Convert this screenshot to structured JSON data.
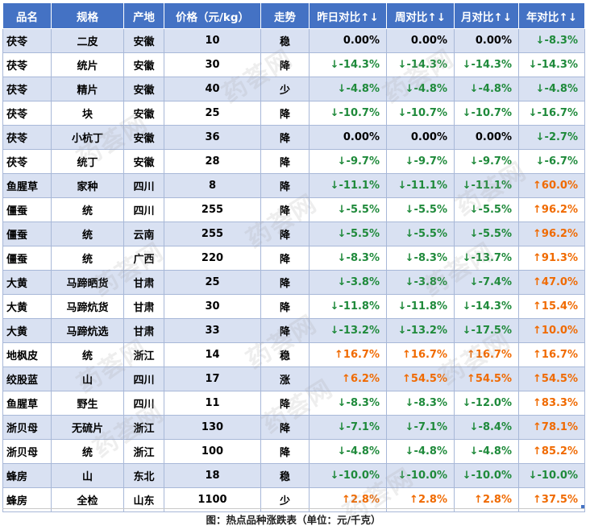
{
  "headers": [
    "品名",
    "规格",
    "产地",
    "价格（元/kg）",
    "走势",
    "昨日对比↑↓",
    "周对比↑↓",
    "月对比↑↓",
    "年对比↑↓"
  ],
  "rows": [
    {
      "name": "茯苓",
      "spec": "二皮",
      "origin": "安徽",
      "price": "10",
      "trend": "稳",
      "day": "0.00%",
      "week": "0.00%",
      "month": "0.00%",
      "year": "↓-8.3%"
    },
    {
      "name": "茯苓",
      "spec": "统片",
      "origin": "安徽",
      "price": "30",
      "trend": "降",
      "day": "↓-14.3%",
      "week": "↓-14.3%",
      "month": "↓-14.3%",
      "year": "↓-14.3%"
    },
    {
      "name": "茯苓",
      "spec": "精片",
      "origin": "安徽",
      "price": "40",
      "trend": "少",
      "day": "↓-4.8%",
      "week": "↓-4.8%",
      "month": "↓-4.8%",
      "year": "↓-4.8%"
    },
    {
      "name": "茯苓",
      "spec": "块",
      "origin": "安徽",
      "price": "25",
      "trend": "降",
      "day": "↓-10.7%",
      "week": "↓-10.7%",
      "month": "↓-10.7%",
      "year": "↓-16.7%"
    },
    {
      "name": "茯苓",
      "spec": "小杭丁",
      "origin": "安徽",
      "price": "36",
      "trend": "降",
      "day": "0.00%",
      "week": "0.00%",
      "month": "0.00%",
      "year": "↓-2.7%"
    },
    {
      "name": "茯苓",
      "spec": "统丁",
      "origin": "安徽",
      "price": "28",
      "trend": "降",
      "day": "↓-9.7%",
      "week": "↓-9.7%",
      "month": "↓-9.7%",
      "year": "↓-6.7%"
    },
    {
      "name": "鱼腥草",
      "spec": "家种",
      "origin": "四川",
      "price": "8",
      "trend": "降",
      "day": "↓-11.1%",
      "week": "↓-11.1%",
      "month": "↓-11.1%",
      "year": "↑60.0%"
    },
    {
      "name": "僵蚕",
      "spec": "统",
      "origin": "四川",
      "price": "255",
      "trend": "降",
      "day": "↓-5.5%",
      "week": "↓-5.5%",
      "month": "↓-5.5%",
      "year": "↑96.2%"
    },
    {
      "name": "僵蚕",
      "spec": "统",
      "origin": "云南",
      "price": "255",
      "trend": "降",
      "day": "↓-5.5%",
      "week": "↓-5.5%",
      "month": "↓-5.5%",
      "year": "↑96.2%"
    },
    {
      "name": "僵蚕",
      "spec": "统",
      "origin": "广西",
      "price": "220",
      "trend": "降",
      "day": "↓-8.3%",
      "week": "↓-8.3%",
      "month": "↓-13.7%",
      "year": "↑91.3%"
    },
    {
      "name": "大黄",
      "spec": "马蹄晒货",
      "origin": "甘肃",
      "price": "25",
      "trend": "降",
      "day": "↓-3.8%",
      "week": "↓-3.8%",
      "month": "↓-7.4%",
      "year": "↑47.0%"
    },
    {
      "name": "大黄",
      "spec": "马蹄炕货",
      "origin": "甘肃",
      "price": "30",
      "trend": "降",
      "day": "↓-11.8%",
      "week": "↓-11.8%",
      "month": "↓-14.3%",
      "year": "↑15.4%"
    },
    {
      "name": "大黄",
      "spec": "马蹄炕选",
      "origin": "甘肃",
      "price": "33",
      "trend": "降",
      "day": "↓-13.2%",
      "week": "↓-13.2%",
      "month": "↓-17.5%",
      "year": "↑10.0%"
    },
    {
      "name": "地枫皮",
      "spec": "统",
      "origin": "浙江",
      "price": "14",
      "trend": "稳",
      "day": "↑16.7%",
      "week": "↑16.7%",
      "month": "↑16.7%",
      "year": "↑16.7%"
    },
    {
      "name": "绞股蓝",
      "spec": "山",
      "origin": "四川",
      "price": "17",
      "trend": "涨",
      "day": "↑6.2%",
      "week": "↑54.5%",
      "month": "↑54.5%",
      "year": "↑54.5%"
    },
    {
      "name": "鱼腥草",
      "spec": "野生",
      "origin": "四川",
      "price": "11",
      "trend": "降",
      "day": "↓-8.3%",
      "week": "↓-8.3%",
      "month": "↓-12.0%",
      "year": "↑83.3%"
    },
    {
      "name": "浙贝母",
      "spec": "无硫片",
      "origin": "浙江",
      "price": "130",
      "trend": "降",
      "day": "↓-7.1%",
      "week": "↓-7.1%",
      "month": "↓-8.4%",
      "year": "↑78.1%"
    },
    {
      "name": "浙贝母",
      "spec": "统",
      "origin": "浙江",
      "price": "100",
      "trend": "降",
      "day": "↓-4.8%",
      "week": "↓-4.8%",
      "month": "↓-4.8%",
      "year": "↑85.2%"
    },
    {
      "name": "蜂房",
      "spec": "山",
      "origin": "东北",
      "price": "18",
      "trend": "稳",
      "day": "↓-10.0%",
      "week": "↓-10.0%",
      "month": "↓-10.0%",
      "year": "↓-10.0%"
    },
    {
      "name": "蜂房",
      "spec": "全检",
      "origin": "山东",
      "price": "1100",
      "trend": "少",
      "day": "↑2.8%",
      "week": "↑2.8%",
      "month": "↑2.8%",
      "year": "↑37.5%"
    }
  ],
  "caption": "图：热点品种涨跌表（单位：元/千克）",
  "watermark": "药荟网",
  "colors": {
    "header_bg": "#4472c4",
    "row_alt_bg": "#d9e1f2",
    "up": "#f06a00",
    "down": "#1f8a3b"
  }
}
